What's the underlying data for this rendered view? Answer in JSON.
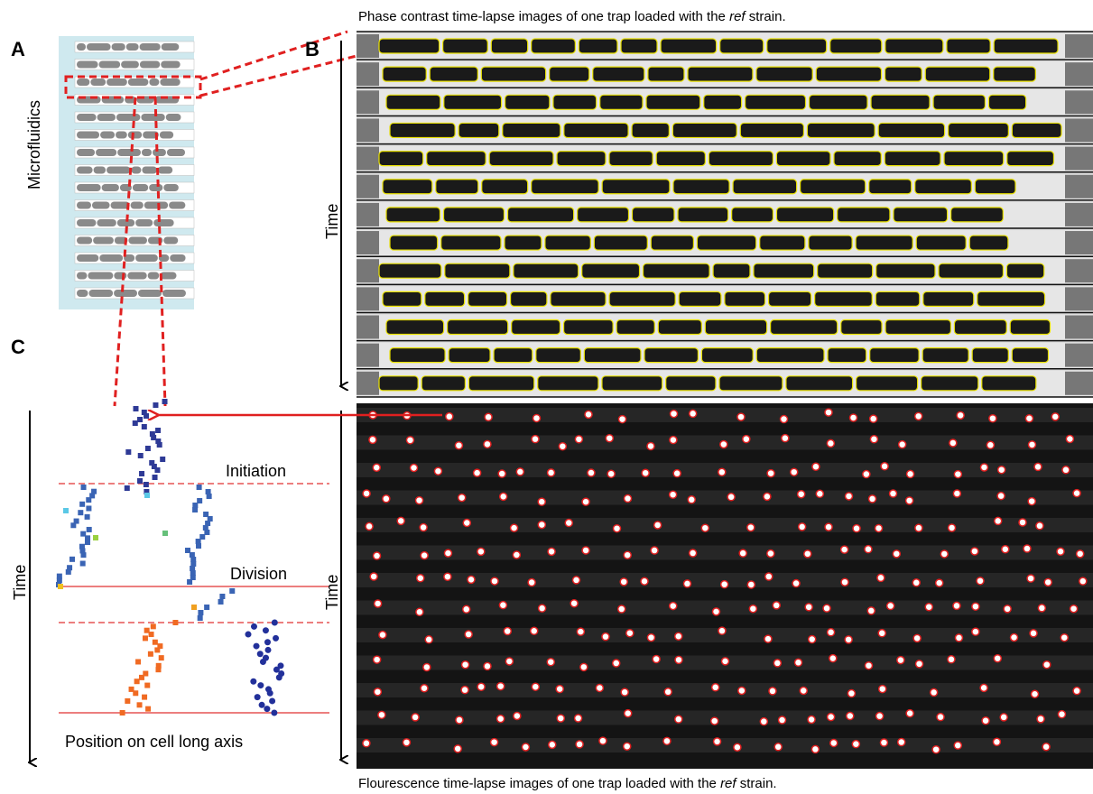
{
  "panels": {
    "a": {
      "label": "A",
      "side_label": "Microfluidics"
    },
    "b": {
      "label": "B",
      "time_label": "Time",
      "caption": {
        "before": "Phase contrast time-lapse images of one trap loaded with the ",
        "italic": "ref",
        "after": " strain."
      }
    },
    "c": {
      "label": "C",
      "time_label": "Time",
      "initiation": "Initiation",
      "division": "Division",
      "axis_label": "Position on cell long axis"
    },
    "fluorescence": {
      "time_label": "Time",
      "caption": {
        "before": "Flourescence time-lapse images of one trap loaded with the ",
        "italic": "ref",
        "after": " strain."
      }
    }
  }
}
